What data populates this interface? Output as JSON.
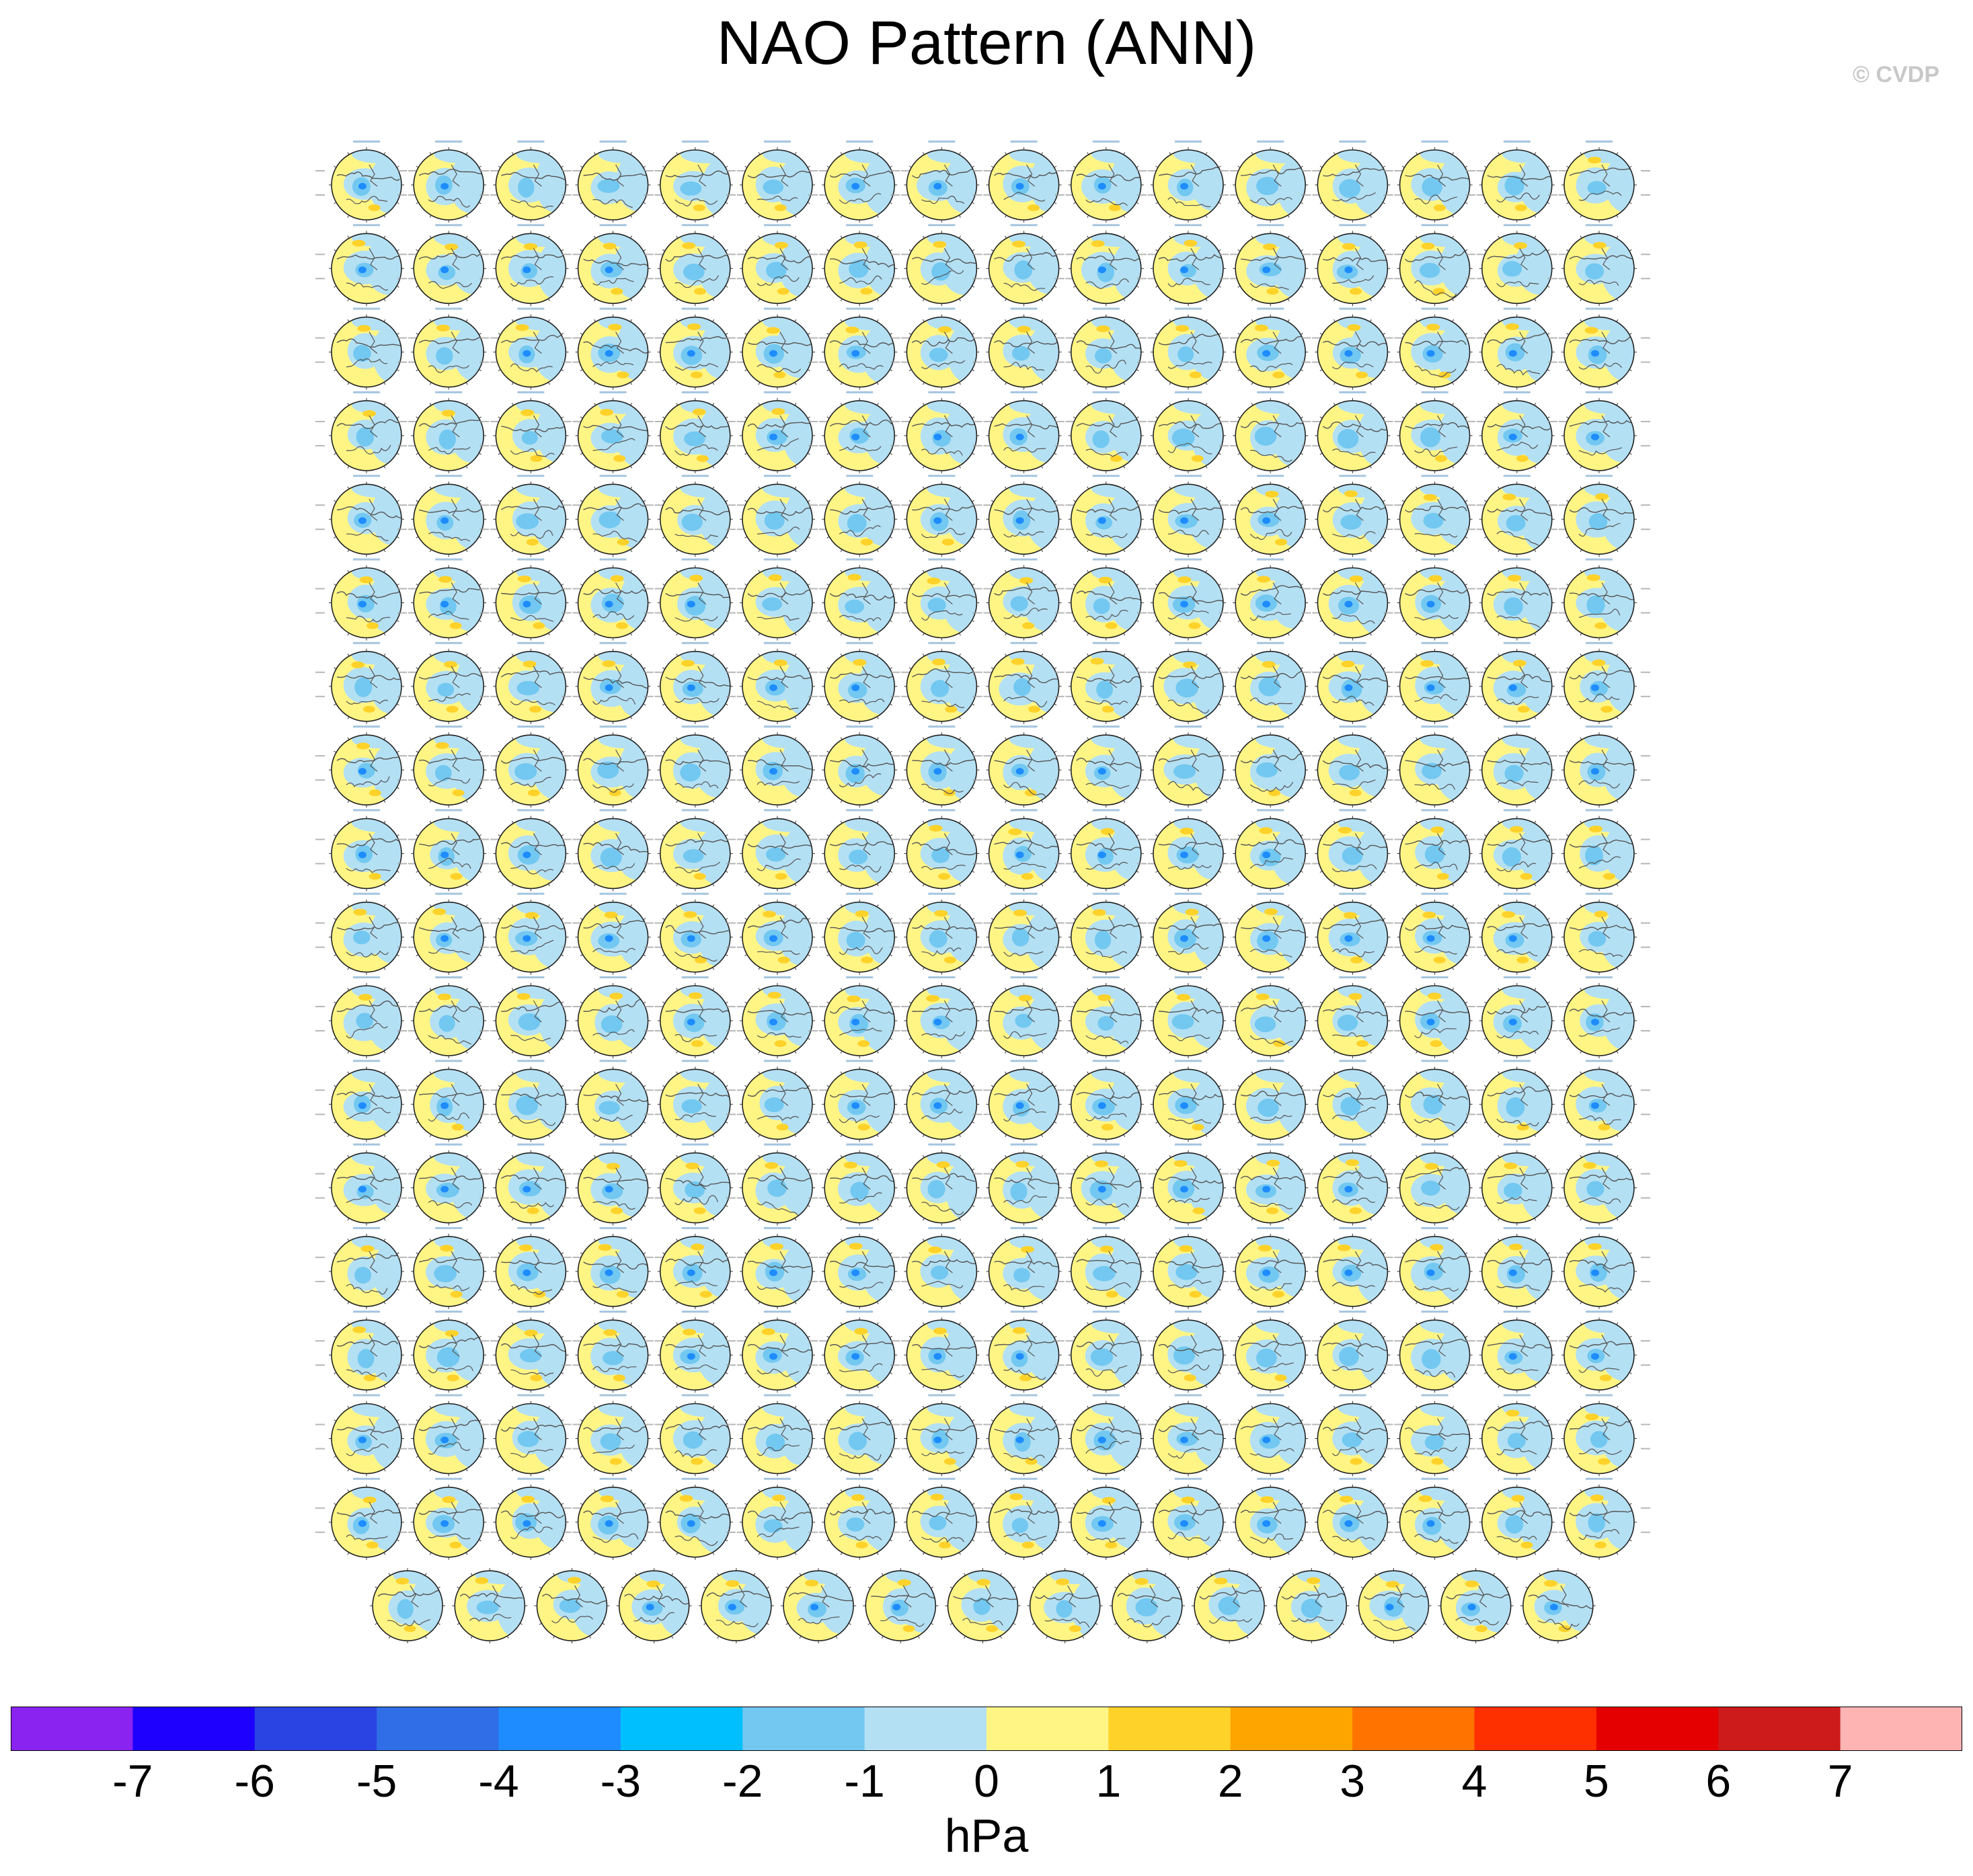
{
  "title": "NAO Pattern (ANN)",
  "copyright": "© CVDP",
  "panels": {
    "rows": 18,
    "cols": 16,
    "last_row_count": 15,
    "ocean_color": "#b4dcf0",
    "land_outline_color": "#555555"
  },
  "colorbar": {
    "units": "hPa",
    "tick_labels": [
      "-7",
      "-6",
      "-5",
      "-4",
      "-3",
      "-2",
      "-1",
      "0",
      "1",
      "2",
      "3",
      "4",
      "5",
      "6",
      "7"
    ],
    "colors": [
      "#8a22f0",
      "#1e00ff",
      "#2a44e4",
      "#2f6ee6",
      "#1e8cff",
      "#00bfff",
      "#72c8f0",
      "#b4e0f4",
      "#fff585",
      "#ffd22a",
      "#ffa500",
      "#ff7300",
      "#ff3000",
      "#e40000",
      "#cd1a1a",
      "#ffb4b4"
    ]
  }
}
